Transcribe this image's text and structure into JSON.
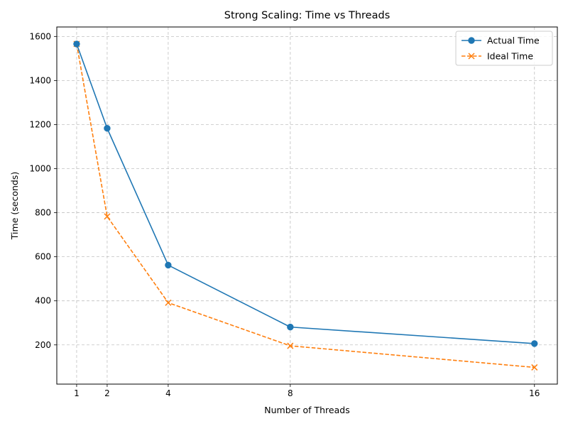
{
  "chart_data": {
    "type": "line",
    "title": "Strong Scaling: Time vs Threads",
    "xlabel": "Number of Threads",
    "ylabel": "Time (seconds)",
    "x": [
      1,
      2,
      4,
      8,
      16
    ],
    "x_ticks": [
      1,
      2,
      4,
      8,
      16
    ],
    "xlim": [
      0.35,
      16.75
    ],
    "y_ticks": [
      200,
      400,
      600,
      800,
      1000,
      1200,
      1400,
      1600
    ],
    "ylim": [
      22,
      1643
    ],
    "grid": true,
    "grid_style": "dashed",
    "legend_position": "top-right",
    "series": [
      {
        "name": "Actual Time",
        "values": [
          1566,
          1183,
          562,
          281,
          206
        ],
        "color": "#1f77b4",
        "line_style": "solid",
        "marker": "circle"
      },
      {
        "name": "Ideal Time",
        "values": [
          1566,
          783,
          391.5,
          195.75,
          97.875
        ],
        "color": "#ff7f0e",
        "line_style": "dashed",
        "marker": "x"
      }
    ]
  }
}
